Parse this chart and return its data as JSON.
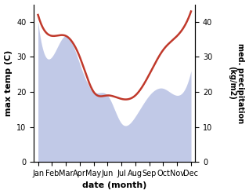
{
  "months": [
    "Jan",
    "Feb",
    "Mar",
    "Apr",
    "May",
    "Jun",
    "Jul",
    "Aug",
    "Sep",
    "Oct",
    "Nov",
    "Dec"
  ],
  "max_temp": [
    40,
    30,
    36,
    28,
    20,
    19,
    11,
    13,
    19,
    21,
    19,
    26
  ],
  "precipitation": [
    42,
    36,
    36,
    30,
    20,
    19,
    18,
    19,
    25,
    32,
    36,
    43
  ],
  "temp_color": "#b0b8d8",
  "temp_fill_color": "#c8d0ea",
  "precip_color": "#c0392b",
  "temp_ylim": [
    0,
    45
  ],
  "precip_ylim": [
    0,
    45
  ],
  "xlabel": "date (month)",
  "ylabel_left": "max temp (C)",
  "ylabel_right": "med. precipitation\n(kg/m2)",
  "bg_color": "#ffffff",
  "yticks_left": [
    0,
    10,
    20,
    30,
    40
  ],
  "yticks_right": [
    0,
    10,
    20,
    30,
    40
  ]
}
